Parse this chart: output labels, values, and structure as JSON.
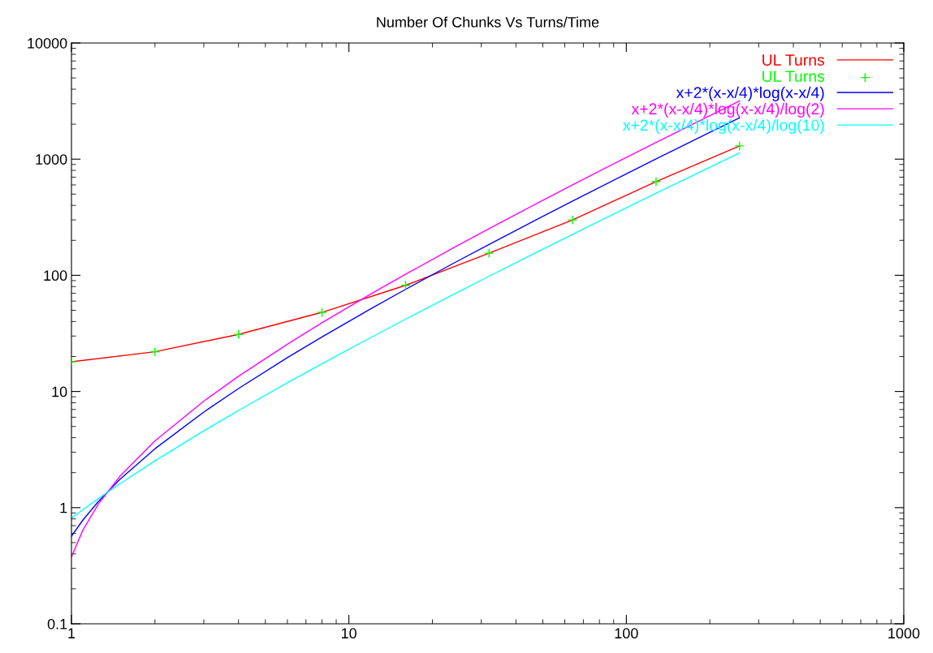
{
  "chart_data": {
    "type": "line",
    "title": "Number Of Chunks Vs Turns/Time",
    "log": "xy",
    "xlim": [
      1,
      1000
    ],
    "ylim": [
      0.1,
      10000
    ],
    "xticks": [
      1,
      10,
      100,
      1000
    ],
    "yticks": [
      0.1,
      1,
      10,
      100,
      1000,
      10000
    ],
    "grid": false,
    "legend": "top right",
    "series": [
      {
        "name": "UL Turns",
        "color": "#ff0000",
        "marker": "none",
        "x": [
          1,
          2,
          4,
          8,
          16,
          32,
          64,
          128,
          256
        ],
        "values": [
          18,
          22,
          31,
          48,
          82,
          155,
          300,
          640,
          1300
        ]
      },
      {
        "name": "UL Turns",
        "color": "#00ff00",
        "type": "scatter",
        "marker": "cross",
        "x": [
          1,
          2,
          4,
          8,
          16,
          32,
          64,
          128,
          256
        ],
        "values": [
          18,
          22,
          31,
          48,
          82,
          155,
          300,
          640,
          1300
        ]
      },
      {
        "name": "x+2*(x-x/4)*log(x-x/4)",
        "color": "#0000ff",
        "marker": "none",
        "x": [
          1,
          1.1,
          1.25,
          1.5,
          2,
          3,
          4,
          6,
          8,
          12,
          16,
          24,
          32,
          48,
          64,
          96,
          128,
          192,
          256
        ],
        "values": [
          0.568,
          0.783,
          1.129,
          1.765,
          3.216,
          6.649,
          10.59,
          19.54,
          29.5,
          51.55,
          75.64,
          128.1,
          184.5,
          306,
          435.6,
          711.8,
          1004,
          1623,
          2275
        ]
      },
      {
        "name": "x+2*(x-x/4)*log(x-x/4)/log(2)",
        "color": "#ff00ff",
        "marker": "none",
        "x": [
          1,
          1.1,
          1.25,
          1.5,
          2,
          3,
          4,
          6,
          8,
          12,
          16,
          24,
          32,
          48,
          64,
          96,
          128,
          192,
          256
        ],
        "values": [
          0.377,
          0.642,
          1.075,
          1.882,
          3.755,
          8.265,
          13.51,
          25.53,
          39.02,
          69.06,
          102,
          174.1,
          252.1,
          420.2,
          600.2,
          984.5,
          1392,
          2257,
          3169
        ]
      },
      {
        "name": "x+2*(x-x/4)*log(x-x/4)/log(10)",
        "color": "#00ffff",
        "marker": "none",
        "x": [
          1,
          1.1,
          1.25,
          1.5,
          2,
          3,
          4,
          6,
          8,
          12,
          16,
          24,
          32,
          48,
          64,
          96,
          128,
          192,
          256
        ],
        "values": [
          0.813,
          0.962,
          1.197,
          1.615,
          2.528,
          4.585,
          6.863,
          11.88,
          17.34,
          29.18,
          41.9,
          69.19,
          98.25,
          160.1,
          225.4,
          363.5,
          508.6,
          813.6,
          1133
        ]
      }
    ]
  }
}
